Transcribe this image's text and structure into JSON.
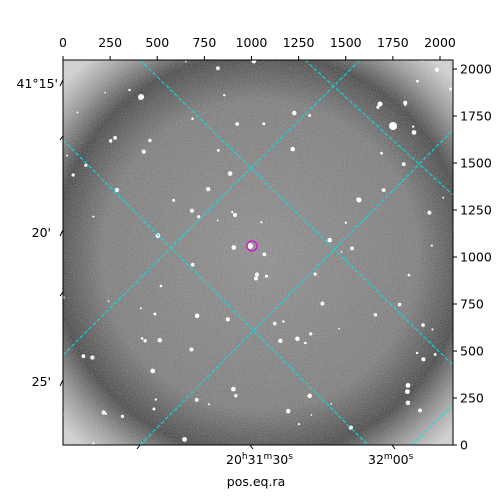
{
  "chart_data": {
    "type": "image",
    "xlabel": "pos.eq.ra",
    "xlim": [
      0,
      2069
    ],
    "xticks": [
      0,
      250,
      500,
      750,
      1000,
      1250,
      1500,
      1750,
      2000
    ],
    "ylim": [
      0,
      2048
    ],
    "yticks": [
      0,
      250,
      500,
      750,
      1000,
      1250,
      1500,
      1750,
      2000
    ],
    "dec_labels": [
      "41°15'",
      "20'",
      "25'"
    ],
    "ra_labels": [
      [
        "20",
        "h",
        "31",
        "m",
        "30",
        "s"
      ],
      [
        "32",
        "m",
        "00",
        "s"
      ]
    ]
  }
}
